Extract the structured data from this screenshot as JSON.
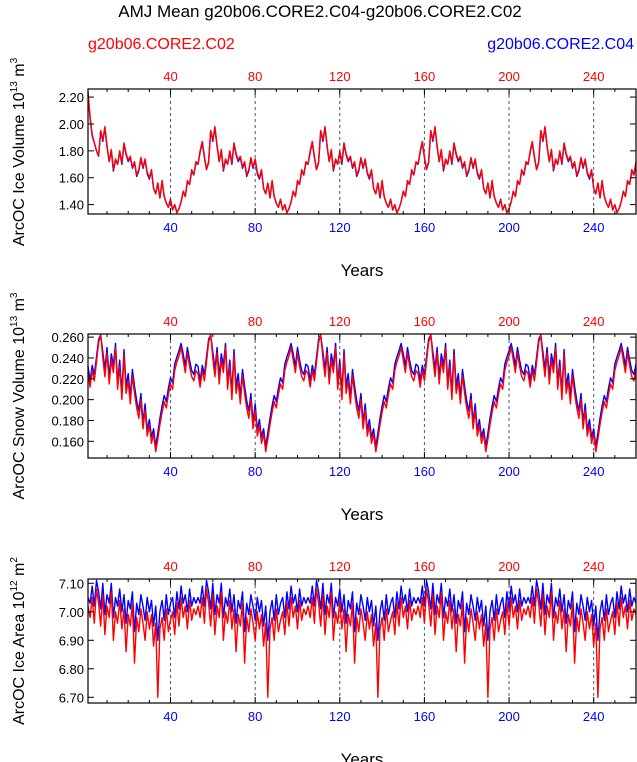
{
  "title": "AMJ Mean g20b06.CORE2.C04-g20b06.CORE2.C02",
  "legend": {
    "left": {
      "label": "g20b06.CORE2.C02",
      "color": "#ff0000"
    },
    "right": {
      "label": "g20b06.CORE2.C04",
      "color": "#0000ff"
    }
  },
  "colors": {
    "c02": "#ff0000",
    "c04": "#0000ff",
    "axis": "#000000",
    "grid": "#555555"
  },
  "chart_data": [
    {
      "type": "line",
      "id": "ice-volume",
      "ylabel_main": "ArcOC Ice Volume 10",
      "ylabel_exp": "13",
      "ylabel_unit": "m",
      "ylabel_unit_exp": "3",
      "xlabel": "Years",
      "xlim": [
        1,
        260
      ],
      "ylim": [
        1.33,
        2.26
      ],
      "yticks": [
        1.4,
        1.6,
        1.8,
        2.0,
        2.2
      ],
      "ytick_labels": [
        "1.40",
        "1.60",
        "1.80",
        "2.00",
        "2.20"
      ],
      "xticks": [
        40,
        80,
        120,
        160,
        200,
        240
      ],
      "xtick_labels": [
        "40",
        "80",
        "120",
        "160",
        "200",
        "240"
      ],
      "cycle_start": 7,
      "cycle_length": 52,
      "cycle_c02": [
        1.95,
        1.88,
        1.98,
        1.84,
        1.72,
        1.81,
        1.66,
        1.74,
        1.7,
        1.8,
        1.71,
        1.86,
        1.78,
        1.73,
        1.76,
        1.68,
        1.72,
        1.62,
        1.66,
        1.75,
        1.68,
        1.74,
        1.64,
        1.6,
        1.66,
        1.52,
        1.48,
        1.56,
        1.45,
        1.58,
        1.46,
        1.41,
        1.38,
        1.44,
        1.36,
        1.4,
        1.34,
        1.37,
        1.42,
        1.5,
        1.46,
        1.58,
        1.55,
        1.66,
        1.62,
        1.72,
        1.7,
        1.8,
        1.87,
        1.76,
        1.66,
        1.72
      ],
      "cycle_c04": [
        1.95,
        1.87,
        1.97,
        1.83,
        1.72,
        1.8,
        1.65,
        1.73,
        1.7,
        1.79,
        1.7,
        1.85,
        1.77,
        1.72,
        1.75,
        1.67,
        1.71,
        1.61,
        1.65,
        1.74,
        1.67,
        1.73,
        1.63,
        1.59,
        1.65,
        1.52,
        1.48,
        1.56,
        1.45,
        1.57,
        1.46,
        1.41,
        1.38,
        1.44,
        1.36,
        1.4,
        1.34,
        1.37,
        1.42,
        1.5,
        1.46,
        1.57,
        1.55,
        1.65,
        1.62,
        1.71,
        1.7,
        1.79,
        1.86,
        1.75,
        1.66,
        1.71
      ],
      "start_c02": [
        2.24,
        2.05,
        1.92,
        1.86,
        1.8,
        1.76
      ],
      "start_c04": [
        2.22,
        2.04,
        1.91,
        1.86,
        1.8,
        1.76
      ]
    },
    {
      "type": "line",
      "id": "snow-volume",
      "ylabel_main": "ArcOC Snow Volume 10",
      "ylabel_exp": "13",
      "ylabel_unit": "m",
      "ylabel_unit_exp": "3",
      "xlabel": "Years",
      "xlim": [
        1,
        260
      ],
      "ylim": [
        0.144,
        0.263
      ],
      "yticks": [
        0.16,
        0.18,
        0.2,
        0.22,
        0.24,
        0.26
      ],
      "ytick_labels": [
        "0.160",
        "0.180",
        "0.200",
        "0.220",
        "0.240",
        "0.260"
      ],
      "xticks": [
        40,
        80,
        120,
        160,
        200,
        240
      ],
      "xtick_labels": [
        "40",
        "80",
        "120",
        "160",
        "200",
        "240"
      ],
      "cycle_start": 1,
      "cycle_length": 52,
      "cycle_c02": [
        0.225,
        0.212,
        0.228,
        0.218,
        0.236,
        0.255,
        0.262,
        0.24,
        0.222,
        0.245,
        0.215,
        0.238,
        0.226,
        0.25,
        0.21,
        0.232,
        0.2,
        0.243,
        0.206,
        0.218,
        0.196,
        0.223,
        0.206,
        0.192,
        0.182,
        0.2,
        0.172,
        0.19,
        0.165,
        0.175,
        0.158,
        0.167,
        0.15,
        0.162,
        0.176,
        0.188,
        0.198,
        0.192,
        0.205,
        0.215,
        0.21,
        0.228,
        0.236,
        0.242,
        0.25,
        0.238,
        0.226,
        0.245,
        0.232,
        0.222,
        0.218,
        0.228
      ],
      "cycle_c04": [
        0.232,
        0.218,
        0.233,
        0.224,
        0.241,
        0.258,
        0.262,
        0.246,
        0.229,
        0.25,
        0.222,
        0.244,
        0.233,
        0.254,
        0.217,
        0.238,
        0.207,
        0.248,
        0.213,
        0.225,
        0.203,
        0.229,
        0.213,
        0.199,
        0.189,
        0.206,
        0.178,
        0.196,
        0.171,
        0.181,
        0.164,
        0.172,
        0.155,
        0.168,
        0.182,
        0.194,
        0.204,
        0.198,
        0.211,
        0.221,
        0.216,
        0.234,
        0.241,
        0.247,
        0.254,
        0.244,
        0.232,
        0.25,
        0.238,
        0.228,
        0.224,
        0.234
      ],
      "start_c02": [],
      "start_c04": []
    },
    {
      "type": "line",
      "id": "ice-area",
      "ylabel_main": "ArcOC Ice Area 10",
      "ylabel_exp": "12",
      "ylabel_unit": "m",
      "ylabel_unit_exp": "2",
      "xlabel": "Years",
      "xlim": [
        1,
        260
      ],
      "ylim": [
        6.68,
        7.115
      ],
      "yticks": [
        6.7,
        6.8,
        6.9,
        7.0,
        7.1
      ],
      "ytick_labels": [
        "6.70",
        "6.80",
        "6.90",
        "7.00",
        "7.10"
      ],
      "xticks": [
        40,
        80,
        120,
        160,
        200,
        240
      ],
      "xtick_labels": [
        "40",
        "80",
        "120",
        "160",
        "200",
        "240"
      ],
      "cycle_start": 1,
      "cycle_length": 52,
      "cycle_c02": [
        7.02,
        6.98,
        7.05,
        6.96,
        7.08,
        7.03,
        6.95,
        7.06,
        6.92,
        7.02,
        6.98,
        7.07,
        6.9,
        7.0,
        6.96,
        7.04,
        6.94,
        7.01,
        6.86,
        6.99,
        6.95,
        7.03,
        6.82,
        6.98,
        6.93,
        7.01,
        6.96,
        6.9,
        7.0,
        6.94,
        6.99,
        6.88,
        6.96,
        6.7,
        6.94,
        6.98,
        6.9,
        7.01,
        6.93,
        6.97,
        7.0,
        6.92,
        7.03,
        6.95,
        7.05,
        6.98,
        7.02,
        6.94,
        7.04,
        6.97,
        7.01,
        6.99
      ],
      "cycle_c04": [
        7.05,
        7.03,
        7.09,
        7.02,
        7.11,
        7.07,
        7.01,
        7.1,
        6.99,
        7.06,
        7.03,
        7.1,
        6.98,
        7.05,
        7.02,
        7.08,
        7.0,
        7.06,
        6.96,
        7.04,
        7.01,
        7.07,
        6.93,
        7.03,
        6.99,
        7.06,
        7.02,
        6.97,
        7.05,
        7.0,
        7.04,
        6.95,
        7.02,
        6.9,
        7.0,
        7.04,
        6.97,
        7.06,
        6.99,
        7.03,
        7.05,
        6.98,
        7.07,
        7.01,
        7.09,
        7.03,
        7.06,
        7.0,
        7.08,
        7.02,
        7.05,
        7.03
      ],
      "start_c02": [],
      "start_c04": []
    }
  ]
}
